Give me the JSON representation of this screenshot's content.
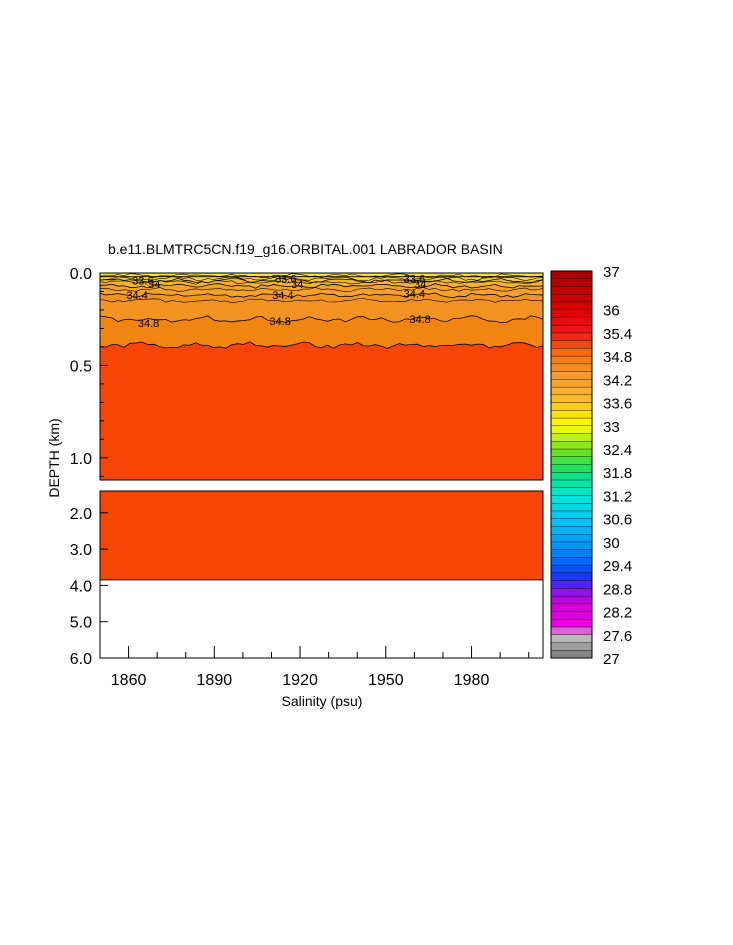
{
  "chart_data": {
    "type": "heatmap",
    "title": "b.e11.BLMTRC5CN.f19_g16.ORBITAL.001 LABRADOR BASIN",
    "xlabel": "Salinity (psu)",
    "ylabel": "DEPTH (km)",
    "xlim": [
      1850,
      2005
    ],
    "x_ticks": [
      1860,
      1890,
      1920,
      1950,
      1980
    ],
    "upper_panel": {
      "ylim": [
        0.0,
        1.12
      ],
      "y_ticks": [
        "0.0",
        "0.5",
        "1.0"
      ]
    },
    "lower_panel": {
      "ylim": [
        1.4,
        6.0
      ],
      "y_ticks": [
        "2.0",
        "3.0",
        "4.0",
        "5.0",
        "6.0"
      ]
    },
    "data_bottom_depth_km": 3.85,
    "layers": [
      {
        "top_km": 0.0,
        "bottom_km": 0.02,
        "salinity": 33.3,
        "color": "#f6e13a"
      },
      {
        "top_km": 0.02,
        "bottom_km": 0.04,
        "salinity": 33.5,
        "color": "#f6cd36"
      },
      {
        "top_km": 0.04,
        "bottom_km": 0.07,
        "salinity": 33.8,
        "color": "#f5b430"
      },
      {
        "top_km": 0.07,
        "bottom_km": 0.12,
        "salinity": 34.1,
        "color": "#f5a12a"
      },
      {
        "top_km": 0.12,
        "bottom_km": 0.25,
        "salinity": 34.5,
        "color": "#f39322"
      },
      {
        "top_km": 0.25,
        "bottom_km": 0.39,
        "salinity": 34.8,
        "color": "#f28412"
      },
      {
        "top_km": 0.39,
        "bottom_km": 3.85,
        "salinity": 34.95,
        "color": "#f84405"
      }
    ],
    "contour_labels": [
      {
        "text": "33.6",
        "x": 1865,
        "depth_km": 0.04
      },
      {
        "text": "34",
        "x": 1869,
        "depth_km": 0.06
      },
      {
        "text": "34.4",
        "x": 1863,
        "depth_km": 0.12
      },
      {
        "text": "34.8",
        "x": 1867,
        "depth_km": 0.27
      },
      {
        "text": "33.6",
        "x": 1915,
        "depth_km": 0.03
      },
      {
        "text": "34",
        "x": 1919,
        "depth_km": 0.06
      },
      {
        "text": "34.4",
        "x": 1914,
        "depth_km": 0.12
      },
      {
        "text": "34.8",
        "x": 1913,
        "depth_km": 0.26
      },
      {
        "text": "33.6",
        "x": 1960,
        "depth_km": 0.03
      },
      {
        "text": "34",
        "x": 1962,
        "depth_km": 0.06
      },
      {
        "text": "34.4",
        "x": 1960,
        "depth_km": 0.11
      },
      {
        "text": "34.8",
        "x": 1962,
        "depth_km": 0.25
      }
    ],
    "colorbar": {
      "min": 27,
      "max": 37,
      "step": 0.2,
      "labels": [
        "37",
        "36",
        "35.4",
        "34.8",
        "34.2",
        "33.6",
        "33",
        "32.4",
        "31.8",
        "31.2",
        "30.6",
        "30",
        "29.4",
        "28.8",
        "28.2",
        "27.6",
        "27"
      ],
      "stops": [
        {
          "v": 27.0,
          "c": "#777777"
        },
        {
          "v": 27.6,
          "c": "#c8c8c8"
        },
        {
          "v": 27.8,
          "c": "#f000e8"
        },
        {
          "v": 28.4,
          "c": "#c800d8"
        },
        {
          "v": 28.8,
          "c": "#7a1ef0"
        },
        {
          "v": 29.0,
          "c": "#2828ff"
        },
        {
          "v": 29.4,
          "c": "#0060ff"
        },
        {
          "v": 30.0,
          "c": "#00a0f8"
        },
        {
          "v": 30.6,
          "c": "#00c8f0"
        },
        {
          "v": 31.2,
          "c": "#00e8d8"
        },
        {
          "v": 31.8,
          "c": "#10e070"
        },
        {
          "v": 32.4,
          "c": "#78e418"
        },
        {
          "v": 33.0,
          "c": "#ffff00"
        },
        {
          "v": 33.6,
          "c": "#f8c030"
        },
        {
          "v": 34.2,
          "c": "#f8a030"
        },
        {
          "v": 34.8,
          "c": "#f87810"
        },
        {
          "v": 35.4,
          "c": "#f01818"
        },
        {
          "v": 36.0,
          "c": "#d80000"
        },
        {
          "v": 37.0,
          "c": "#a00000"
        }
      ]
    }
  }
}
